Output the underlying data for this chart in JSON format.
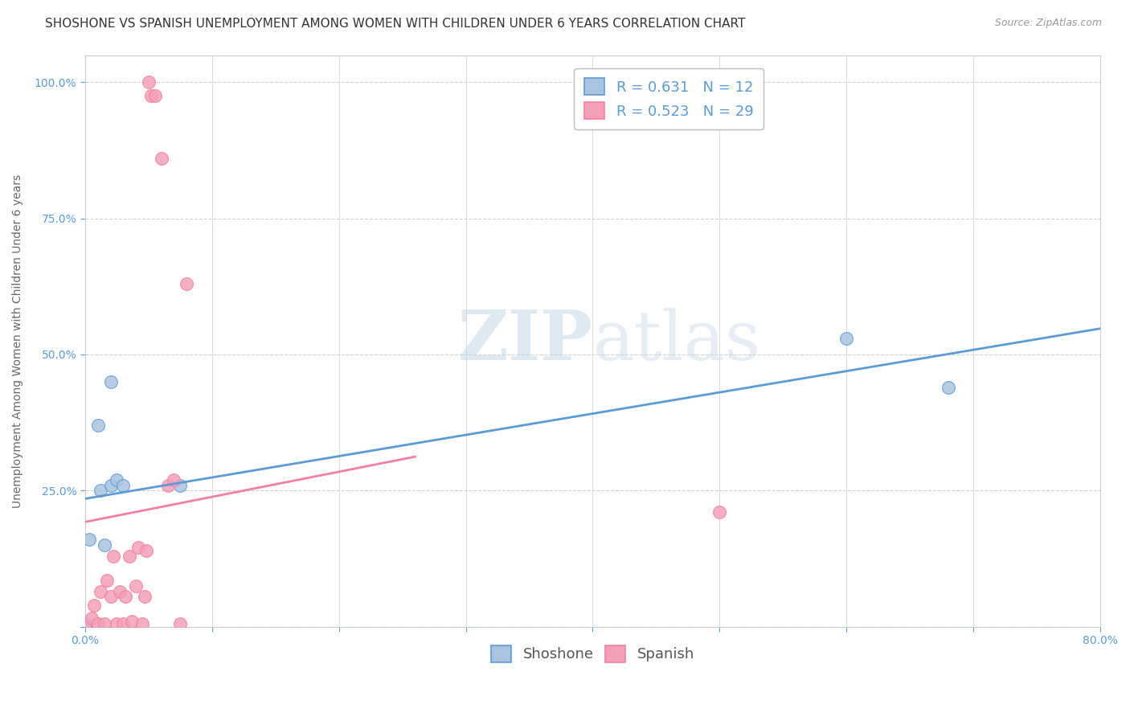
{
  "title": "SHOSHONE VS SPANISH UNEMPLOYMENT AMONG WOMEN WITH CHILDREN UNDER 6 YEARS CORRELATION CHART",
  "source": "Source: ZipAtlas.com",
  "ylabel": "Unemployment Among Women with Children Under 6 years",
  "xlabel": "",
  "watermark_zip": "ZIP",
  "watermark_atlas": "atlas",
  "xlim": [
    0.0,
    0.8
  ],
  "ylim": [
    0.0,
    1.05
  ],
  "xticks": [
    0.0,
    0.1,
    0.2,
    0.3,
    0.4,
    0.5,
    0.6,
    0.7,
    0.8
  ],
  "xticklabels": [
    "0.0%",
    "",
    "",
    "",
    "",
    "",
    "",
    "",
    "80.0%"
  ],
  "yticks": [
    0.0,
    0.25,
    0.5,
    0.75,
    1.0
  ],
  "yticklabels": [
    "",
    "25.0%",
    "50.0%",
    "75.0%",
    "100.0%"
  ],
  "shoshone_r": 0.631,
  "shoshone_n": 12,
  "spanish_r": 0.523,
  "spanish_n": 29,
  "shoshone_color": "#a8c4e0",
  "spanish_color": "#f4a0b8",
  "shoshone_line_color": "#5b9bd5",
  "spanish_line_color": "#f47fa0",
  "shoshone_points_x": [
    0.0,
    0.003,
    0.01,
    0.012,
    0.015,
    0.02,
    0.02,
    0.025,
    0.03,
    0.6,
    0.68,
    0.075
  ],
  "shoshone_points_y": [
    0.003,
    0.16,
    0.37,
    0.25,
    0.15,
    0.26,
    0.45,
    0.27,
    0.26,
    0.53,
    0.44,
    0.26
  ],
  "spanish_points_x": [
    0.0,
    0.005,
    0.007,
    0.01,
    0.012,
    0.015,
    0.017,
    0.02,
    0.022,
    0.025,
    0.027,
    0.03,
    0.032,
    0.035,
    0.037,
    0.04,
    0.042,
    0.045,
    0.047,
    0.048,
    0.05,
    0.052,
    0.055,
    0.06,
    0.065,
    0.07,
    0.075,
    0.08,
    0.5
  ],
  "spanish_points_y": [
    0.005,
    0.015,
    0.04,
    0.005,
    0.065,
    0.005,
    0.085,
    0.055,
    0.13,
    0.005,
    0.065,
    0.005,
    0.055,
    0.13,
    0.01,
    0.075,
    0.145,
    0.005,
    0.055,
    0.14,
    1.0,
    0.975,
    0.975,
    0.86,
    0.26,
    0.27,
    0.005,
    0.63,
    0.21
  ],
  "marker_size": 130,
  "title_fontsize": 11,
  "axis_label_fontsize": 10,
  "tick_fontsize": 10,
  "legend_fontsize": 13,
  "source_fontsize": 9,
  "shoshone_line_x": [
    0.0,
    0.8
  ],
  "spanish_line_x": [
    0.0,
    0.26
  ]
}
